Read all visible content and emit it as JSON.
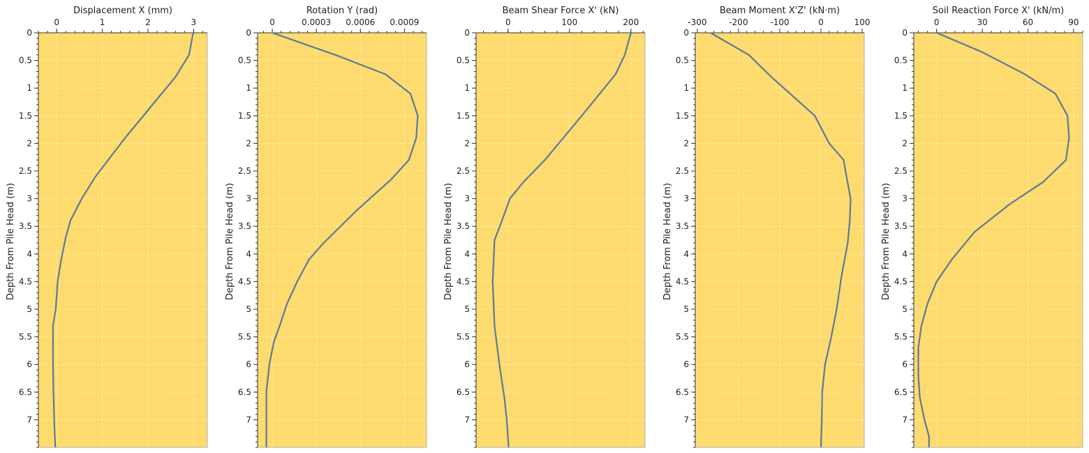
{
  "ylabel": "Depth From Pile Head (m)",
  "chart_data": [
    {
      "type": "line",
      "title": "Displacement X (mm)",
      "xlim": [
        -0.4,
        3.3
      ],
      "xticks": [
        0,
        1,
        2,
        3
      ],
      "xtick_labels": [
        "0",
        "1",
        "2",
        "3"
      ],
      "ylim": [
        0,
        7.5
      ],
      "yticks": [
        0,
        0.5,
        1,
        1.5,
        2,
        2.5,
        3,
        3.5,
        4,
        4.5,
        5,
        5.5,
        6,
        6.5,
        7
      ],
      "ytick_labels": [
        "0",
        "0.5",
        "1",
        "1.5",
        "2",
        "2.5",
        "3",
        "3.5",
        "4",
        "4.5",
        "5",
        "5.5",
        "6",
        "6.5",
        "7"
      ],
      "series": [
        {
          "x": [
            2.99,
            2.9,
            2.6,
            2.2,
            1.5,
            0.85,
            0.55,
            0.3,
            0.2,
            0.1,
            0.02,
            -0.02,
            -0.08,
            -0.08,
            -0.07,
            -0.05,
            -0.03
          ],
          "y": [
            0,
            0.4,
            0.8,
            1.2,
            1.9,
            2.6,
            3.0,
            3.4,
            3.7,
            4.1,
            4.5,
            5.0,
            5.3,
            6.0,
            6.5,
            7.1,
            7.5
          ]
        }
      ],
      "grid": true
    },
    {
      "type": "line",
      "title": "Rotation Y (rad)",
      "xlim": [
        -0.0001,
        0.00105
      ],
      "xticks": [
        0,
        0.0003,
        0.0006,
        0.0009
      ],
      "xtick_labels": [
        "0",
        "0.0003",
        "0.0006",
        "0.0009"
      ],
      "ylim": [
        0,
        7.5
      ],
      "yticks": [
        0,
        0.5,
        1,
        1.5,
        2,
        2.5,
        3,
        3.5,
        4,
        4.5,
        5,
        5.5,
        6,
        6.5,
        7
      ],
      "ytick_labels": [
        "0",
        "0.5",
        "1",
        "1.5",
        "2",
        "2.5",
        "3",
        "3.5",
        "4",
        "4.5",
        "5",
        "5.5",
        "6",
        "6.5",
        "7"
      ],
      "series": [
        {
          "x": [
            0,
            0.00043,
            0.00077,
            0.00094,
            0.00099,
            0.00098,
            0.00093,
            0.00081,
            0.00058,
            0.00035,
            0.00025,
            0.00017,
            0.0001,
            5e-05,
            1e-05,
            -2e-05,
            -4e-05,
            -4e-05,
            -4e-05
          ],
          "y": [
            0,
            0.4,
            0.75,
            1.1,
            1.5,
            1.9,
            2.3,
            2.65,
            3.2,
            3.8,
            4.1,
            4.5,
            4.9,
            5.3,
            5.6,
            6.0,
            6.5,
            7.0,
            7.5
          ]
        }
      ],
      "grid": true
    },
    {
      "type": "line",
      "title": "Beam Shear Force X' (kN)",
      "xlim": [
        -52,
        223
      ],
      "xticks": [
        0,
        100,
        200
      ],
      "xtick_labels": [
        "0",
        "100",
        "200"
      ],
      "ylim": [
        0,
        7.5
      ],
      "yticks": [
        0,
        0.5,
        1,
        1.5,
        2,
        2.5,
        3,
        3.5,
        4,
        4.5,
        5,
        5.5,
        6,
        6.5,
        7
      ],
      "ytick_labels": [
        "0",
        "0.5",
        "1",
        "1.5",
        "2",
        "2.5",
        "3",
        "3.5",
        "4",
        "4.5",
        "5",
        "5.5",
        "6",
        "6.5",
        "7"
      ],
      "series": [
        {
          "x": [
            200,
            190,
            175,
            120,
            60,
            25,
            3,
            -10,
            -22,
            -25,
            -22,
            -14,
            -6,
            -2,
            1
          ],
          "y": [
            0,
            0.4,
            0.75,
            1.5,
            2.3,
            2.7,
            3.0,
            3.4,
            3.75,
            4.5,
            5.3,
            6.0,
            6.6,
            7.0,
            7.5
          ]
        }
      ],
      "grid": true
    },
    {
      "type": "line",
      "title": "Beam Moment X'Z' (kN·m)",
      "xlim": [
        -305,
        105
      ],
      "xticks": [
        -300,
        -200,
        -100,
        0,
        100
      ],
      "xtick_labels": [
        "-300",
        "-200",
        "-100",
        "0",
        "100"
      ],
      "ylim": [
        0,
        7.5
      ],
      "yticks": [
        0,
        0.5,
        1,
        1.5,
        2,
        2.5,
        3,
        3.5,
        4,
        4.5,
        5,
        5.5,
        6,
        6.5,
        7
      ],
      "ytick_labels": [
        "0",
        "0.5",
        "1",
        "1.5",
        "2",
        "2.5",
        "3",
        "3.5",
        "4",
        "4.5",
        "5",
        "5.5",
        "6",
        "6.5",
        "7"
      ],
      "series": [
        {
          "x": [
            -268,
            -175,
            -120,
            -15,
            20,
            55,
            62,
            72,
            70,
            65,
            50,
            38,
            25,
            10,
            3,
            2,
            0
          ],
          "y": [
            0,
            0.4,
            0.8,
            1.5,
            2.0,
            2.3,
            2.6,
            3.0,
            3.4,
            3.8,
            4.4,
            5.0,
            5.5,
            6.0,
            6.5,
            7.0,
            7.5
          ]
        }
      ],
      "grid": true
    },
    {
      "type": "line",
      "title": "Soil Reaction Force X' (kN/m)",
      "xlim": [
        -15,
        96
      ],
      "xticks": [
        0,
        30,
        60,
        90
      ],
      "xtick_labels": [
        "0",
        "30",
        "60",
        "90"
      ],
      "ylim": [
        0,
        7.5
      ],
      "yticks": [
        0,
        0.5,
        1,
        1.5,
        2,
        2.5,
        3,
        3.5,
        4,
        4.5,
        5,
        5.5,
        6,
        6.5,
        7
      ],
      "ytick_labels": [
        "0",
        "0.5",
        "1",
        "1.5",
        "2",
        "2.5",
        "3",
        "3.5",
        "4",
        "4.5",
        "5",
        "5.5",
        "6",
        "6.5",
        "7"
      ],
      "series": [
        {
          "x": [
            0,
            30,
            58,
            78,
            86,
            87,
            85,
            70,
            48,
            25,
            10,
            0,
            -6,
            -10,
            -12,
            -12,
            -11,
            -8,
            -5,
            -5
          ],
          "y": [
            0,
            0.35,
            0.75,
            1.1,
            1.5,
            1.9,
            2.3,
            2.7,
            3.1,
            3.6,
            4.1,
            4.5,
            4.9,
            5.3,
            5.7,
            6.2,
            6.6,
            7.0,
            7.3,
            7.5
          ]
        }
      ],
      "grid": true
    }
  ]
}
